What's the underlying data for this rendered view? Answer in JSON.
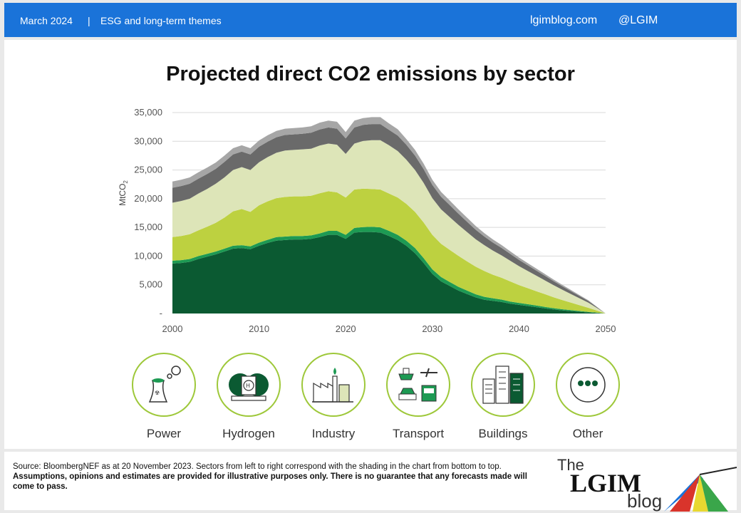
{
  "header": {
    "date": "March 2024",
    "separator": "|",
    "theme": "ESG and long-term themes",
    "site": "lgimblog.com",
    "handle": "@LGIM"
  },
  "chart_data": {
    "type": "area",
    "stacked": true,
    "title": "Projected direct CO2 emissions by sector",
    "ylabel": "MtCO2",
    "xlabel": "",
    "ylim": [
      0,
      35000
    ],
    "yticks": [
      "-",
      "5,000",
      "10,000",
      "15,000",
      "20,000",
      "25,000",
      "30,000",
      "35,000"
    ],
    "ytick_values": [
      0,
      5000,
      10000,
      15000,
      20000,
      25000,
      30000,
      35000
    ],
    "xticks": [
      2000,
      2010,
      2020,
      2030,
      2040,
      2050
    ],
    "grid": true,
    "x": [
      2000,
      2001,
      2002,
      2003,
      2004,
      2005,
      2006,
      2007,
      2008,
      2009,
      2010,
      2011,
      2012,
      2013,
      2014,
      2015,
      2016,
      2017,
      2018,
      2019,
      2020,
      2021,
      2022,
      2023,
      2024,
      2025,
      2026,
      2027,
      2028,
      2029,
      2030,
      2031,
      2032,
      2033,
      2034,
      2035,
      2036,
      2037,
      2038,
      2039,
      2040,
      2041,
      2042,
      2043,
      2044,
      2045,
      2046,
      2047,
      2048,
      2049,
      2050
    ],
    "series": [
      {
        "name": "Power",
        "color": "#0b5a32",
        "values": [
          8700,
          8800,
          9000,
          9500,
          9900,
          10300,
          10800,
          11300,
          11400,
          11200,
          11800,
          12300,
          12700,
          12800,
          12900,
          12900,
          13000,
          13300,
          13700,
          13700,
          13000,
          14100,
          14200,
          14200,
          14100,
          13500,
          12800,
          11800,
          10500,
          8800,
          6900,
          5600,
          4800,
          4000,
          3400,
          2800,
          2400,
          2200,
          2000,
          1700,
          1500,
          1300,
          1100,
          900,
          700,
          550,
          420,
          300,
          180,
          90,
          0
        ]
      },
      {
        "name": "Hydrogen",
        "color": "#1d9a53",
        "values": [
          500,
          500,
          500,
          500,
          500,
          500,
          500,
          500,
          500,
          500,
          550,
          550,
          600,
          600,
          600,
          600,
          600,
          650,
          700,
          700,
          700,
          800,
          850,
          900,
          900,
          900,
          900,
          900,
          900,
          850,
          800,
          750,
          700,
          650,
          600,
          550,
          500,
          450,
          420,
          380,
          350,
          320,
          290,
          260,
          230,
          200,
          170,
          140,
          110,
          70,
          0
        ]
      },
      {
        "name": "Industry",
        "color": "#bdd140",
        "values": [
          4100,
          4200,
          4300,
          4500,
          4700,
          5000,
          5400,
          6000,
          6300,
          6000,
          6500,
          6700,
          6800,
          6900,
          6900,
          6900,
          6900,
          7000,
          6900,
          6700,
          6500,
          6700,
          6700,
          6600,
          6600,
          6500,
          6500,
          6400,
          6300,
          6200,
          6000,
          5800,
          5600,
          5400,
          5100,
          4800,
          4500,
          4100,
          3800,
          3500,
          3100,
          2800,
          2500,
          2200,
          1900,
          1600,
          1300,
          1000,
          700,
          350,
          0
        ]
      },
      {
        "name": "Transport",
        "color": "#dde5b8",
        "values": [
          6000,
          6100,
          6200,
          6400,
          6600,
          6800,
          7000,
          7200,
          7300,
          7300,
          7500,
          7700,
          7900,
          8100,
          8100,
          8200,
          8200,
          8300,
          8300,
          8300,
          7600,
          8000,
          8300,
          8500,
          8600,
          8400,
          8100,
          7700,
          7300,
          6900,
          6400,
          6000,
          5700,
          5400,
          5100,
          4800,
          4500,
          4200,
          3900,
          3600,
          3300,
          3000,
          2700,
          2400,
          2100,
          1800,
          1500,
          1200,
          900,
          450,
          0
        ]
      },
      {
        "name": "Buildings",
        "color": "#6a6a6a",
        "values": [
          2600,
          2600,
          2600,
          2600,
          2600,
          2600,
          2700,
          2700,
          2700,
          2700,
          2700,
          2700,
          2700,
          2700,
          2700,
          2700,
          2800,
          2800,
          2800,
          2800,
          2700,
          2800,
          2800,
          2800,
          2800,
          2700,
          2700,
          2600,
          2500,
          2400,
          2300,
          2200,
          2100,
          1950,
          1800,
          1650,
          1500,
          1400,
          1300,
          1200,
          1100,
          1000,
          900,
          800,
          700,
          600,
          500,
          400,
          300,
          150,
          0
        ]
      },
      {
        "name": "Other",
        "color": "#a6a6a6",
        "values": [
          1100,
          1100,
          1100,
          1100,
          1100,
          1100,
          1100,
          1100,
          1100,
          1100,
          1100,
          1100,
          1100,
          1100,
          1100,
          1100,
          1100,
          1200,
          1200,
          1200,
          1100,
          1200,
          1200,
          1200,
          1200,
          1100,
          1100,
          1000,
          1000,
          950,
          900,
          850,
          800,
          750,
          700,
          650,
          600,
          550,
          500,
          450,
          400,
          370,
          340,
          310,
          280,
          240,
          200,
          160,
          120,
          60,
          0
        ]
      }
    ]
  },
  "sectors": [
    {
      "label": "Power",
      "icon": "power-plant-icon"
    },
    {
      "label": "Hydrogen",
      "icon": "hydrogen-tanks-icon"
    },
    {
      "label": "Industry",
      "icon": "factory-icon"
    },
    {
      "label": "Transport",
      "icon": "transport-icon"
    },
    {
      "label": "Buildings",
      "icon": "buildings-icon"
    },
    {
      "label": "Other",
      "icon": "more-dots-icon"
    }
  ],
  "footer": {
    "source": "Source: BloombergNEF as at 20 November 2023. Sectors from left to right correspond with the shading in the chart from bottom to top.",
    "disclaimer": "Assumptions, opinions and estimates are provided for illustrative purposes only. There is no guarantee that any forecasts made will come to pass."
  },
  "logo": {
    "line1": "The",
    "line2": "LGIM",
    "line3": "blog"
  },
  "colors": {
    "header": "#1a73d9",
    "accent": "#9ec83a",
    "dark_green": "#0b5a32"
  }
}
